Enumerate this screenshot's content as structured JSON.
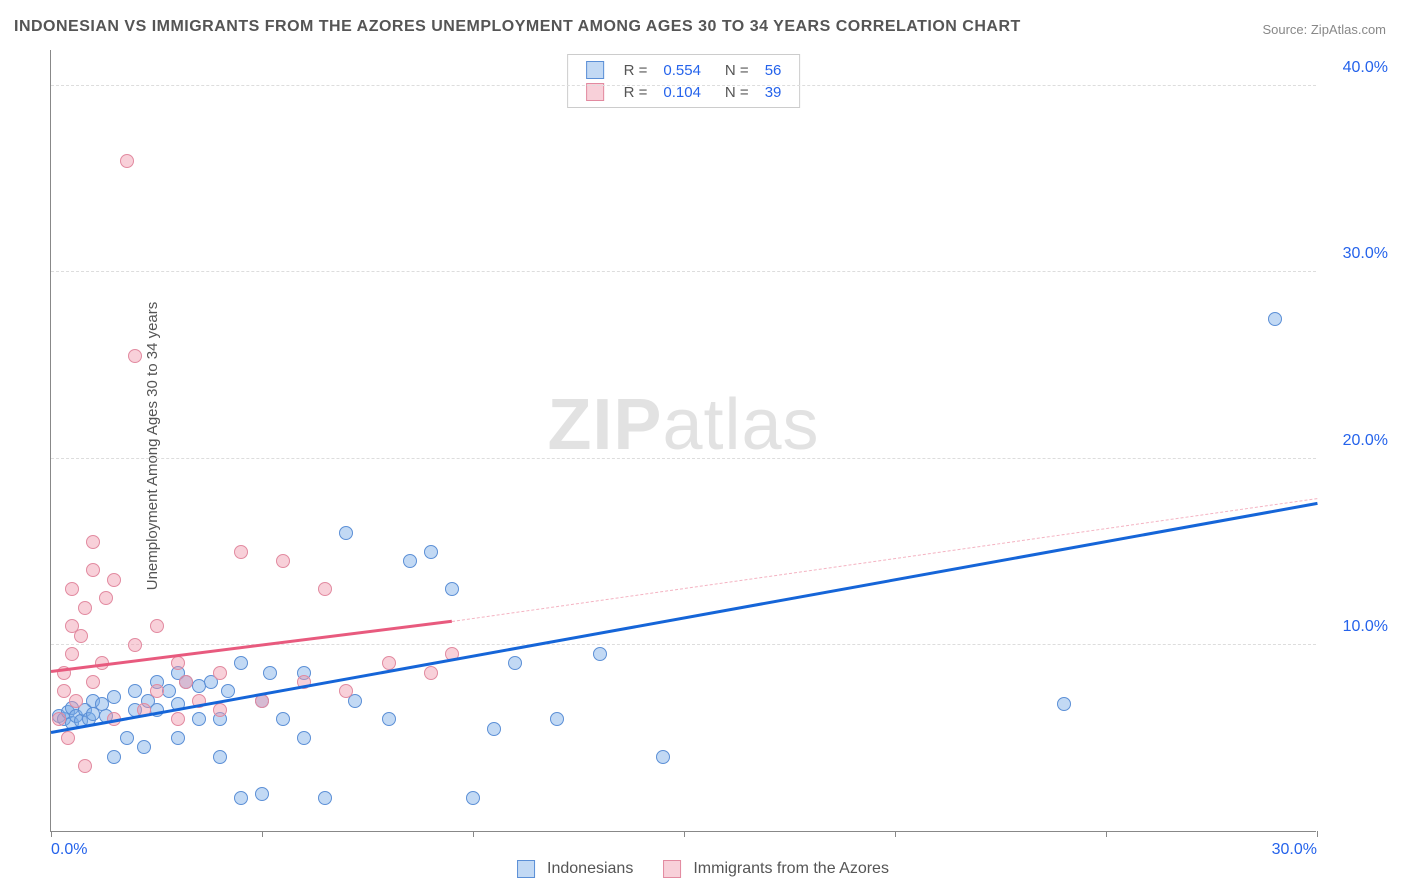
{
  "title": "INDONESIAN VS IMMIGRANTS FROM THE AZORES UNEMPLOYMENT AMONG AGES 30 TO 34 YEARS CORRELATION CHART",
  "source": "Source: ZipAtlas.com",
  "watermark": {
    "bold": "ZIP",
    "normal": "atlas"
  },
  "ylabel": "Unemployment Among Ages 30 to 34 years",
  "chart": {
    "type": "scatter",
    "background_color": "#ffffff",
    "grid_color": "#dddddd",
    "axis_color": "#888888",
    "xlim": [
      0,
      30
    ],
    "ylim": [
      0,
      42
    ],
    "xticks": [
      0,
      5,
      10,
      15,
      20,
      25,
      30
    ],
    "xtick_labels": [
      {
        "v": 0,
        "label": "0.0%",
        "color": "#2563eb",
        "align": "left"
      },
      {
        "v": 30,
        "label": "30.0%",
        "color": "#2563eb",
        "align": "right"
      }
    ],
    "yticks": [
      10,
      20,
      30,
      40
    ],
    "ytick_labels": [
      {
        "v": 10,
        "label": "10.0%",
        "color": "#2563eb"
      },
      {
        "v": 20,
        "label": "20.0%",
        "color": "#2563eb"
      },
      {
        "v": 30,
        "label": "30.0%",
        "color": "#2563eb"
      },
      {
        "v": 40,
        "label": "40.0%",
        "color": "#2563eb"
      }
    ],
    "marker_size": 14,
    "marker_border_width": 1,
    "series": [
      {
        "name": "Indonesians",
        "fill": "rgba(120,170,230,0.45)",
        "stroke": "#5b8fd6",
        "points": [
          [
            0.2,
            6.2
          ],
          [
            0.3,
            6.0
          ],
          [
            0.4,
            6.4
          ],
          [
            0.5,
            5.8
          ],
          [
            0.5,
            6.6
          ],
          [
            0.6,
            6.2
          ],
          [
            0.7,
            5.9
          ],
          [
            0.8,
            6.5
          ],
          [
            0.9,
            6.0
          ],
          [
            1.0,
            6.3
          ],
          [
            1.0,
            7.0
          ],
          [
            1.2,
            6.8
          ],
          [
            1.3,
            6.2
          ],
          [
            1.5,
            7.2
          ],
          [
            1.5,
            4.0
          ],
          [
            1.8,
            5.0
          ],
          [
            2.0,
            6.5
          ],
          [
            2.0,
            7.5
          ],
          [
            2.2,
            4.5
          ],
          [
            2.3,
            7.0
          ],
          [
            2.5,
            6.5
          ],
          [
            2.5,
            8.0
          ],
          [
            2.8,
            7.5
          ],
          [
            3.0,
            5.0
          ],
          [
            3.0,
            6.8
          ],
          [
            3.0,
            8.5
          ],
          [
            3.2,
            8.0
          ],
          [
            3.5,
            6.0
          ],
          [
            3.5,
            7.8
          ],
          [
            3.8,
            8.0
          ],
          [
            4.0,
            4.0
          ],
          [
            4.0,
            6.0
          ],
          [
            4.2,
            7.5
          ],
          [
            4.5,
            9.0
          ],
          [
            4.5,
            1.8
          ],
          [
            5.0,
            2.0
          ],
          [
            5.0,
            7.0
          ],
          [
            5.2,
            8.5
          ],
          [
            5.5,
            6.0
          ],
          [
            6.0,
            5.0
          ],
          [
            6.0,
            8.5
          ],
          [
            6.5,
            1.8
          ],
          [
            7.0,
            16.0
          ],
          [
            7.2,
            7.0
          ],
          [
            8.0,
            6.0
          ],
          [
            8.5,
            14.5
          ],
          [
            9.0,
            15.0
          ],
          [
            9.5,
            13.0
          ],
          [
            10.0,
            1.8
          ],
          [
            10.5,
            5.5
          ],
          [
            11.0,
            9.0
          ],
          [
            12.0,
            6.0
          ],
          [
            13.0,
            9.5
          ],
          [
            14.5,
            4.0
          ],
          [
            24.0,
            6.8
          ],
          [
            29.0,
            27.5
          ]
        ],
        "trend": {
          "x1": 0,
          "y1": 5.2,
          "x2": 30,
          "y2": 17.5,
          "color": "#1565d8",
          "width": 3,
          "style": "solid"
        },
        "r": "0.554",
        "n": "56"
      },
      {
        "name": "Immigrants from the Azores",
        "fill": "rgba(240,150,170,0.45)",
        "stroke": "#e28aa0",
        "points": [
          [
            0.2,
            6.0
          ],
          [
            0.3,
            7.5
          ],
          [
            0.3,
            8.5
          ],
          [
            0.4,
            5.0
          ],
          [
            0.5,
            9.5
          ],
          [
            0.5,
            11.0
          ],
          [
            0.5,
            13.0
          ],
          [
            0.6,
            7.0
          ],
          [
            0.7,
            10.5
          ],
          [
            0.8,
            3.5
          ],
          [
            0.8,
            12.0
          ],
          [
            1.0,
            8.0
          ],
          [
            1.0,
            14.0
          ],
          [
            1.0,
            15.5
          ],
          [
            1.2,
            9.0
          ],
          [
            1.3,
            12.5
          ],
          [
            1.5,
            6.0
          ],
          [
            1.5,
            13.5
          ],
          [
            1.8,
            36.0
          ],
          [
            2.0,
            10.0
          ],
          [
            2.0,
            25.5
          ],
          [
            2.2,
            6.5
          ],
          [
            2.5,
            7.5
          ],
          [
            2.5,
            11.0
          ],
          [
            3.0,
            6.0
          ],
          [
            3.0,
            9.0
          ],
          [
            3.2,
            8.0
          ],
          [
            3.5,
            7.0
          ],
          [
            4.0,
            6.5
          ],
          [
            4.0,
            8.5
          ],
          [
            4.5,
            15.0
          ],
          [
            5.0,
            7.0
          ],
          [
            5.5,
            14.5
          ],
          [
            6.0,
            8.0
          ],
          [
            6.5,
            13.0
          ],
          [
            7.0,
            7.5
          ],
          [
            8.0,
            9.0
          ],
          [
            9.0,
            8.5
          ],
          [
            9.5,
            9.5
          ]
        ],
        "trend": {
          "x1": 0,
          "y1": 8.5,
          "x2": 9.5,
          "y2": 11.2,
          "color": "#e85a7e",
          "width": 3,
          "style": "solid"
        },
        "trend_ext": {
          "x1": 9.5,
          "y1": 11.2,
          "x2": 30,
          "y2": 17.8,
          "color": "#f4b3c2",
          "width": 1,
          "style": "dashed"
        },
        "r": "0.104",
        "n": "39"
      }
    ]
  },
  "legend_top": {
    "r_label": "R =",
    "n_label": "N =",
    "value_color": "#2563eb",
    "label_color": "#555555"
  },
  "legend_bottom": {
    "items": [
      {
        "label": "Indonesians",
        "fill": "rgba(120,170,230,0.45)",
        "stroke": "#5b8fd6"
      },
      {
        "label": "Immigrants from the Azores",
        "fill": "rgba(240,150,170,0.45)",
        "stroke": "#e28aa0"
      }
    ]
  }
}
